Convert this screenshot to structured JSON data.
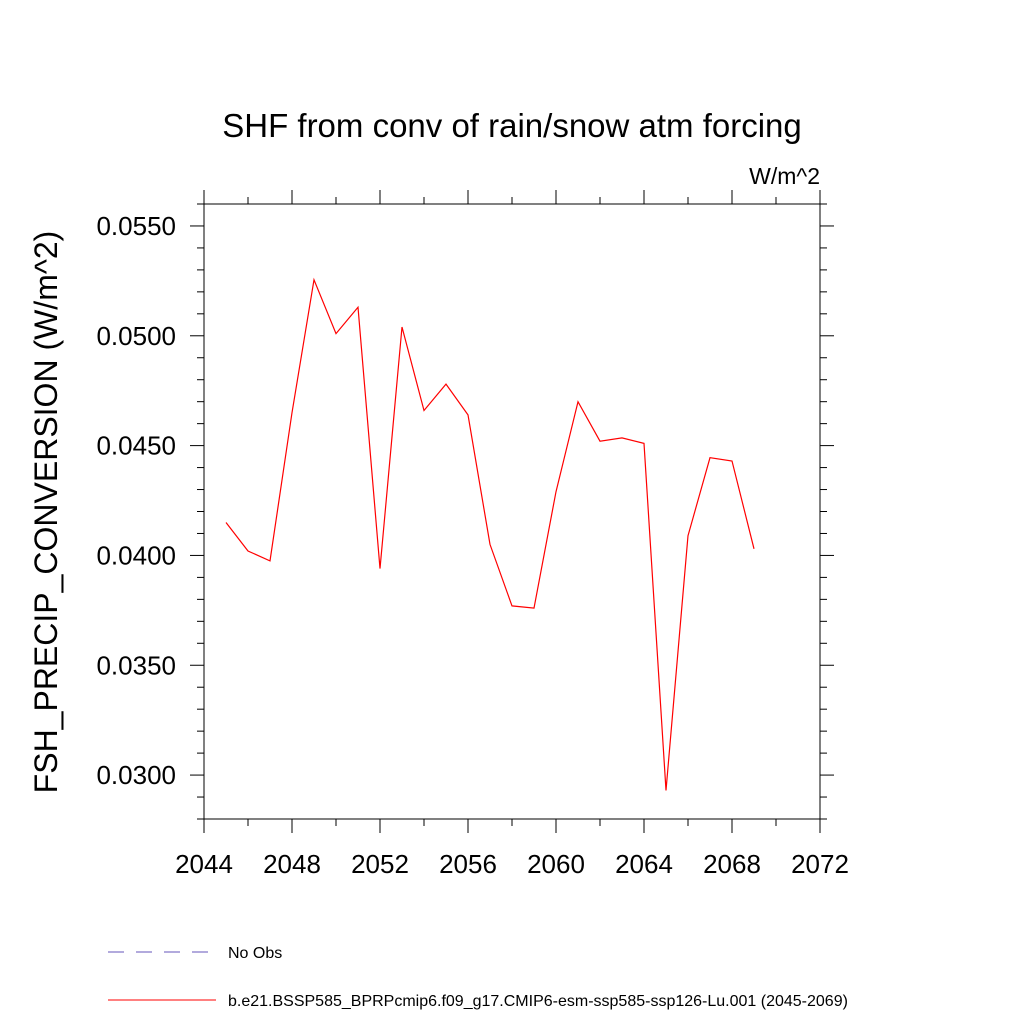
{
  "chart_data": {
    "type": "line",
    "title": "SHF from conv of rain/snow atm forcing",
    "units_label": "W/m^2",
    "xlabel": "",
    "ylabel": "FSH_PRECIP_CONVERSION  (W/m^2)",
    "xlim": [
      2044,
      2072
    ],
    "ylim": [
      0.028,
      0.056
    ],
    "x_ticks": [
      2044,
      2048,
      2052,
      2056,
      2060,
      2064,
      2068,
      2072
    ],
    "x_tick_labels": [
      "2044",
      "2048",
      "2052",
      "2056",
      "2060",
      "2064",
      "2068",
      "2072"
    ],
    "y_ticks": [
      0.03,
      0.035,
      0.04,
      0.045,
      0.05,
      0.055
    ],
    "y_tick_labels": [
      "0.0300",
      "0.0350",
      "0.0400",
      "0.0450",
      "0.0500",
      "0.0550"
    ],
    "grid": false,
    "legend_position": "bottom",
    "series": [
      {
        "name": "b.e21.BSSP585_BPRPcmip6.f09_g17.CMIP6-esm-ssp585-ssp126-Lu.001 (2045-2069)",
        "color": "#ff0000",
        "style": "solid",
        "x": [
          2045,
          2046,
          2047,
          2048,
          2049,
          2050,
          2051,
          2052,
          2053,
          2054,
          2055,
          2056,
          2057,
          2058,
          2059,
          2060,
          2061,
          2062,
          2063,
          2064,
          2065,
          2066,
          2067,
          2068,
          2069
        ],
        "values": [
          0.0415,
          0.0402,
          0.03975,
          0.0465,
          0.05255,
          0.0501,
          0.0513,
          0.0394,
          0.0504,
          0.0466,
          0.0478,
          0.0464,
          0.0405,
          0.0377,
          0.0376,
          0.0429,
          0.047,
          0.0452,
          0.04535,
          0.0451,
          0.0293,
          0.0409,
          0.04445,
          0.0443,
          0.0403
        ]
      }
    ],
    "legend": [
      {
        "label": "No Obs",
        "color": "#6655bb",
        "style": "dashed"
      },
      {
        "label": "b.e21.BSSP585_BPRPcmip6.f09_g17.CMIP6-esm-ssp585-ssp126-Lu.001 (2045-2069)",
        "color": "#ff0000",
        "style": "solid"
      }
    ]
  }
}
